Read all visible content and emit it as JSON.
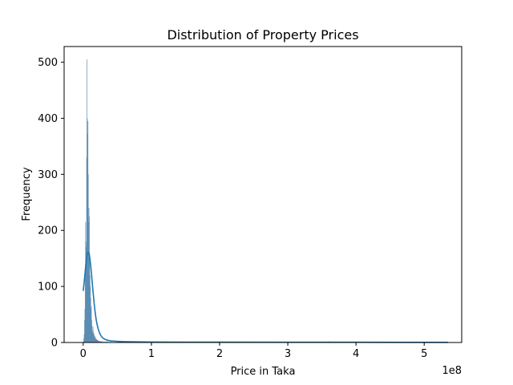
{
  "chart_data": {
    "type": "bar",
    "title": "Distribution of Property Prices",
    "xlabel": "Price in Taka",
    "ylabel": "Frequency",
    "x_offset_label": "1e8",
    "xlim": [
      -28000000.0,
      555000000.0
    ],
    "ylim": [
      0,
      528
    ],
    "x_ticks": [
      0,
      100000000,
      200000000,
      300000000,
      400000000,
      500000000
    ],
    "x_tick_labels": [
      "0",
      "1",
      "2",
      "3",
      "4",
      "5"
    ],
    "y_ticks": [
      0,
      100,
      200,
      300,
      400,
      500
    ],
    "y_tick_labels": [
      "0",
      "100",
      "200",
      "300",
      "400",
      "500"
    ],
    "grid": false,
    "bar_color": "#4a7fa8",
    "kde_color": "#1f77b4",
    "histogram": {
      "bin_edges_start": 0,
      "bin_width": 500000,
      "counts": [
        2,
        8,
        15,
        40,
        60,
        120,
        215,
        180,
        170,
        330,
        505,
        400,
        372,
        395,
        300,
        215,
        240,
        225,
        160,
        120,
        100,
        80,
        60,
        65,
        40,
        30,
        22,
        18,
        28,
        15,
        18,
        14,
        10,
        8,
        12,
        9,
        7,
        6,
        5,
        6,
        5,
        4,
        4,
        3,
        3,
        2,
        2,
        3,
        2,
        2,
        2,
        2,
        1,
        2,
        1,
        1,
        2,
        1,
        1,
        1,
        1,
        1,
        1,
        1,
        1,
        1,
        1,
        1,
        1,
        1
      ],
      "tail": [
        {
          "x": 35000000.0,
          "count": 3
        },
        {
          "x": 40000000.0,
          "count": 2
        },
        {
          "x": 46000000.0,
          "count": 1
        },
        {
          "x": 53000000.0,
          "count": 3
        },
        {
          "x": 61000000.0,
          "count": 1
        },
        {
          "x": 70000000.0,
          "count": 2
        },
        {
          "x": 86000000.0,
          "count": 1
        },
        {
          "x": 108000000.0,
          "count": 2
        },
        {
          "x": 120000000.0,
          "count": 2
        },
        {
          "x": 155000000.0,
          "count": 1
        },
        {
          "x": 200000000.0,
          "count": 1
        },
        {
          "x": 220000000.0,
          "count": 1
        },
        {
          "x": 275000000.0,
          "count": 1
        },
        {
          "x": 360000000.0,
          "count": 2
        },
        {
          "x": 415000000.0,
          "count": 1
        },
        {
          "x": 530000000.0,
          "count": 1
        }
      ]
    },
    "kde": {
      "x": [
        0,
        1000000,
        2000000,
        3000000,
        4000000,
        5000000,
        6000000,
        7000000,
        8000000,
        9000000,
        10000000,
        11000000,
        12000000,
        13000000,
        14000000,
        15000000,
        16000000,
        17000000,
        18000000,
        19000000,
        20000000,
        22000000,
        24000000,
        26000000,
        28000000,
        30000000,
        33000000,
        36000000,
        40000000,
        45000000,
        50000000,
        60000000,
        70000000,
        80000000,
        100000000,
        150000000,
        200000000,
        300000000,
        400000000,
        500000000,
        535000000
      ],
      "y": [
        92,
        103,
        115,
        128,
        141,
        152,
        159,
        161,
        160,
        156,
        148,
        137,
        124,
        110,
        96,
        83,
        70,
        59,
        49,
        41,
        34,
        24,
        17,
        12,
        9,
        7,
        5,
        4,
        3,
        2.5,
        2,
        1.6,
        1.3,
        1.1,
        0.9,
        0.7,
        0.6,
        0.5,
        0.4,
        0.3,
        0.3
      ]
    }
  }
}
